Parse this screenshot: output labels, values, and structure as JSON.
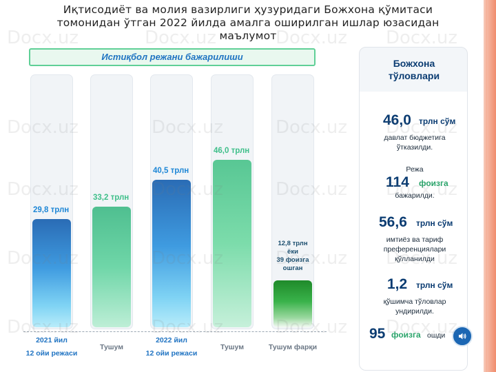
{
  "title": {
    "lines": [
      "Иқтисодиёт ва молия вазирлиги ҳузуридаги Божхона қўмитаси",
      "томонидан ўтган 2022 йилда амалга оширилган ишлар юзасидан",
      "маълумот"
    ]
  },
  "banner": "Истиқбол режани бажарилиши",
  "chart_data": {
    "type": "bar",
    "title": "Истиқбол режани бажарилиши",
    "categories": [
      "2021 йил 12 ойи режаси",
      "Тушум",
      "2022 йил 12 ойи режаси",
      "Тушум",
      "Тушум фарқи"
    ],
    "category_labels": [
      [
        "2021 йил",
        "12 ойи режаси"
      ],
      [
        "Тушум"
      ],
      [
        "2022 йил",
        "12 ойи режаси"
      ],
      [
        "Тушум"
      ],
      [
        "Тушум фарқи"
      ]
    ],
    "values": [
      29.8,
      33.2,
      40.5,
      46.0,
      12.8
    ],
    "value_labels": [
      "29,8 трлн",
      "33,2 трлн",
      "40,5 трлн",
      "46,0 трлн",
      ""
    ],
    "diff_note": [
      "12,8 трлн",
      "ёки",
      "39 фоизга",
      "ошган"
    ],
    "unit": "трлн",
    "ylim": [
      0,
      50
    ],
    "colors": [
      "#2a6cb5",
      "#4fbf90",
      "#2a6cb5",
      "#58c794",
      "#1f8a2a"
    ]
  },
  "panel": {
    "title": [
      "Божхона",
      "тўловлари"
    ],
    "stats": [
      {
        "value": "46,0",
        "unit": "трлн сўм",
        "text": [
          "давлат бюджетига",
          "ўтказилди."
        ]
      },
      {
        "pre": "Режа",
        "value": "114",
        "unit": "фоизга",
        "text": [
          "бажарилди."
        ]
      },
      {
        "value": "56,6",
        "unit": "трлн сўм",
        "text": [
          "имтиёз  ва тариф",
          "преференциялари",
          "қўлланилди"
        ]
      },
      {
        "value": "1,2",
        "unit": "трлн сўм",
        "text": [
          "қўшимча  тўловлар",
          "ундирилди."
        ]
      },
      {
        "value": "95",
        "unit": "фоизга",
        "suffix": "ошди"
      }
    ]
  },
  "watermark": "Docx.uz",
  "colors": {
    "accent_blue": "#1e87d6",
    "dark_navy": "#0b3c72",
    "green": "#3fbf8a"
  },
  "icons": {
    "audio": "speaker-icon"
  }
}
